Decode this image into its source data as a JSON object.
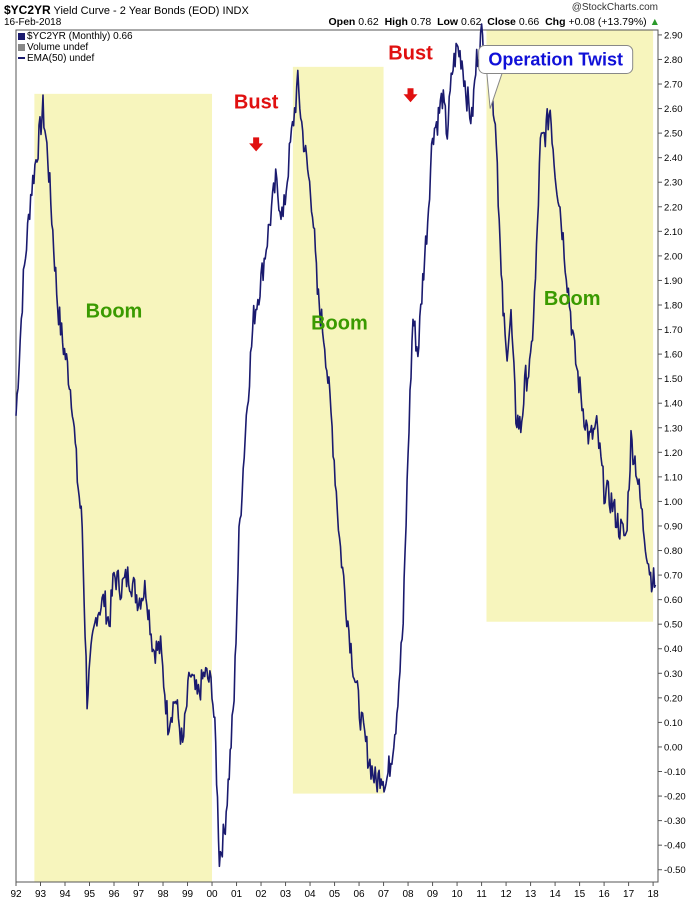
{
  "header": {
    "symbol": "$YC2YR",
    "name": "Yield Curve - 2 Year Bonds (EOD)",
    "exchange": "INDX",
    "date": "16-Feb-2018",
    "open_label": "Open",
    "open": "0.62",
    "high_label": "High",
    "high": "0.78",
    "low_label": "Low",
    "low": "0.62",
    "close_label": "Close",
    "close": "0.66",
    "chg_label": "Chg",
    "chg": "+0.08 (+13.79%)",
    "brand": "@StockCharts.com"
  },
  "legend": {
    "series": "$YC2YR (Monthly) 0.66",
    "volume": "Volume undef",
    "ema": "EMA(50) undef"
  },
  "colors": {
    "line": "#1a1a6e",
    "shade": "#f7f5bd",
    "boom": "#3a9a00",
    "bust": "#e01010",
    "twist": "#1010d8"
  },
  "chart_data": {
    "type": "line",
    "title": "Yield Curve - 2 Year Bonds (EOD)",
    "y_ticks": [
      "2.90",
      "2.80",
      "2.70",
      "2.60",
      "2.50",
      "2.40",
      "2.30",
      "2.20",
      "2.10",
      "2.00",
      "1.90",
      "1.80",
      "1.70",
      "1.60",
      "1.50",
      "1.40",
      "1.30",
      "1.20",
      "1.10",
      "1.00",
      "0.90",
      "0.80",
      "0.70",
      "0.60",
      "0.50",
      "0.40",
      "0.30",
      "0.20",
      "0.10",
      "0.00",
      "-0.10",
      "-0.20",
      "-0.30",
      "-0.40",
      "-0.50"
    ],
    "ylim": [
      -0.55,
      2.92
    ],
    "x_ticks": [
      "92",
      "93",
      "94",
      "95",
      "96",
      "97",
      "98",
      "99",
      "00",
      "01",
      "02",
      "03",
      "04",
      "05",
      "06",
      "07",
      "08",
      "09",
      "10",
      "11",
      "12",
      "13",
      "14",
      "15",
      "16",
      "17",
      "18"
    ],
    "xlim": [
      1992.0,
      2018.2
    ],
    "series": [
      {
        "x": [
          1992.0,
          1992.3,
          1992.6,
          1992.9,
          1993.1,
          1993.3,
          1993.5,
          1993.7,
          1993.9,
          1994.1,
          1994.3,
          1994.5,
          1994.7,
          1994.9,
          1995.1,
          1995.3,
          1995.6,
          1995.8,
          1996.0,
          1996.3,
          1996.6,
          1997.0,
          1997.3,
          1997.6,
          1997.9,
          1998.2,
          1998.5,
          1998.8,
          1999.1,
          1999.4,
          1999.7,
          2000.0,
          2000.15,
          2000.3,
          2000.5,
          2000.7,
          2000.9,
          2001.1,
          2001.4,
          2001.7,
          2002.0,
          2002.3,
          2002.6,
          2002.9,
          2003.2,
          2003.5,
          2003.7,
          2003.9,
          2004.1,
          2004.3,
          2004.6,
          2004.9,
          2005.2,
          2005.5,
          2005.8,
          2006.1,
          2006.4,
          2006.7,
          2006.9,
          2007.1,
          2007.3,
          2007.5,
          2007.8,
          2008.0,
          2008.2,
          2008.4,
          2008.6,
          2008.8,
          2009.0,
          2009.2,
          2009.4,
          2009.6,
          2009.8,
          2010.0,
          2010.2,
          2010.4,
          2010.6,
          2010.8,
          2011.0,
          2011.2,
          2011.4,
          2011.6,
          2011.8,
          2012.0,
          2012.2,
          2012.4,
          2012.6,
          2012.8,
          2013.0,
          2013.2,
          2013.4,
          2013.6,
          2013.8,
          2014.0,
          2014.2,
          2014.5,
          2014.8,
          2015.1,
          2015.4,
          2015.7,
          2016.0,
          2016.3,
          2016.6,
          2016.9,
          2017.1,
          2017.3,
          2017.6,
          2017.9,
          2018.1
        ],
        "values": [
          1.35,
          1.9,
          2.25,
          2.45,
          2.6,
          2.4,
          2.1,
          1.8,
          1.65,
          1.55,
          1.4,
          1.1,
          0.9,
          0.2,
          0.4,
          0.55,
          0.6,
          0.5,
          0.7,
          0.65,
          0.7,
          0.6,
          0.65,
          0.4,
          0.4,
          0.1,
          0.2,
          0.0,
          0.3,
          0.2,
          0.3,
          0.25,
          0.0,
          -0.45,
          -0.35,
          -0.1,
          0.2,
          0.85,
          1.35,
          1.75,
          1.9,
          2.1,
          2.3,
          2.15,
          2.45,
          2.7,
          2.5,
          2.35,
          2.2,
          1.85,
          1.65,
          1.3,
          0.85,
          0.55,
          0.3,
          0.1,
          -0.05,
          -0.15,
          -0.1,
          -0.15,
          -0.05,
          0.1,
          0.5,
          1.2,
          1.75,
          1.6,
          1.9,
          2.15,
          2.5,
          2.55,
          2.65,
          2.5,
          2.75,
          2.85,
          2.8,
          2.65,
          2.55,
          2.8,
          2.9,
          2.8,
          2.7,
          2.5,
          1.9,
          1.6,
          1.75,
          1.35,
          1.3,
          1.5,
          1.55,
          1.9,
          2.45,
          2.5,
          2.6,
          2.35,
          2.2,
          1.9,
          1.6,
          1.4,
          1.25,
          1.3,
          1.05,
          1.0,
          0.9,
          0.85,
          1.25,
          1.15,
          0.9,
          0.7,
          0.66
        ]
      }
    ],
    "shaded_periods": [
      [
        1992.75,
        2000.0
      ],
      [
        2003.3,
        2007.0
      ],
      [
        2011.2,
        2018.0
      ]
    ],
    "annotations": [
      {
        "text": "Boom",
        "x": 1996.0,
        "y": 1.75,
        "kind": "boom"
      },
      {
        "text": "Bust",
        "x": 2001.8,
        "y": 2.6,
        "kind": "bust",
        "arrow_y": 2.45
      },
      {
        "text": "Boom",
        "x": 2005.2,
        "y": 1.7,
        "kind": "boom"
      },
      {
        "text": "Bust",
        "x": 2008.1,
        "y": 2.8,
        "kind": "bust",
        "arrow_y": 2.65
      },
      {
        "text": "Boom",
        "x": 2014.7,
        "y": 1.8,
        "kind": "boom"
      },
      {
        "text": "Operation Twist",
        "x": 2014.8,
        "y": 2.8,
        "kind": "twist",
        "pointer": [
          2011.35,
          2.6
        ]
      }
    ],
    "grid": false
  }
}
